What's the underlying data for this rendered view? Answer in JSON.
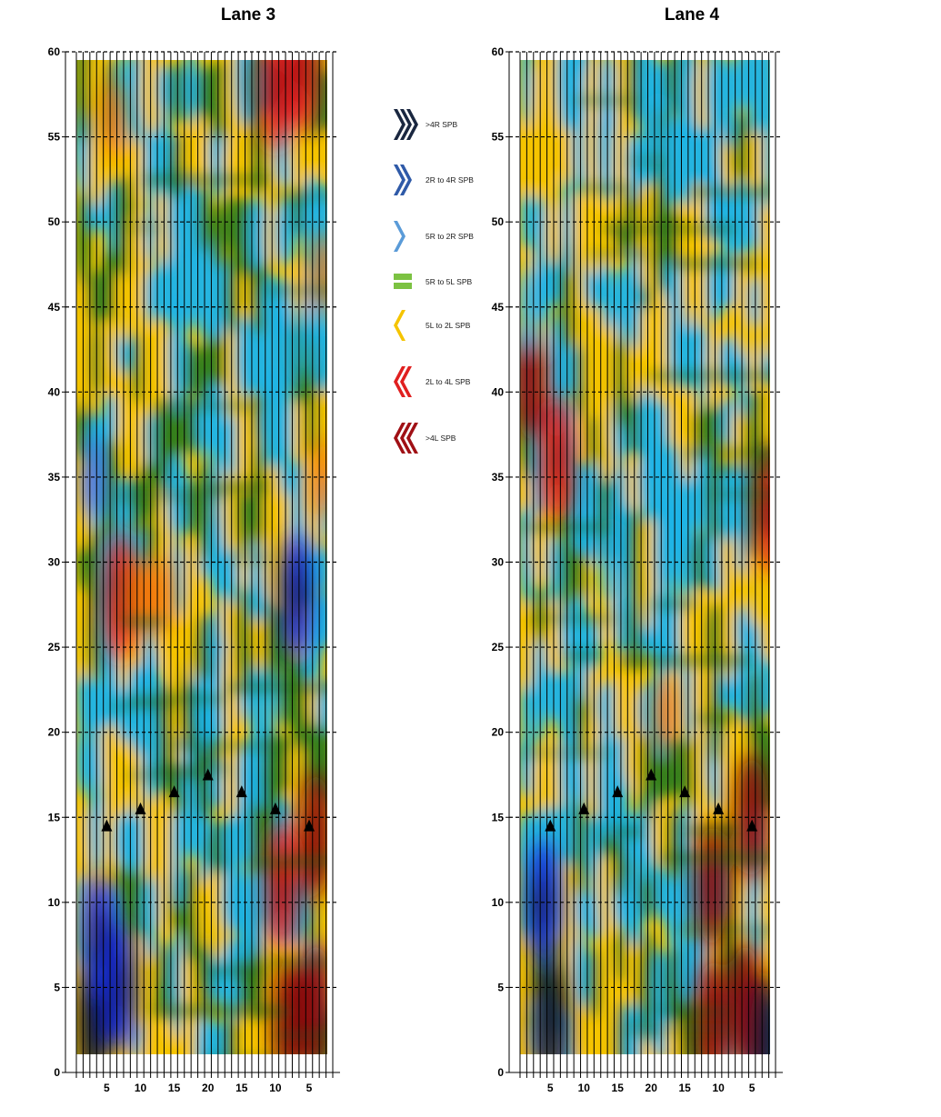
{
  "colors": {
    ">4R SPB": "#1a2740",
    "2R to 4R SPB": "#2f5aa8",
    "5R to 2R SPB": "#5a9bd8",
    "5R to 5L SPB": "#7cc242",
    "5L to 2L SPB": "#f5c400",
    "2L to 4L SPB": "#e02020",
    ">4L SPB": "#a01015"
  },
  "chart_data": [
    {
      "type": "heatmap",
      "title": "Lane 3",
      "ylim": [
        0,
        60
      ],
      "yticks": [
        0,
        5,
        10,
        15,
        20,
        25,
        30,
        35,
        40,
        45,
        50,
        55,
        60
      ],
      "xtick_labels": [
        "5",
        "10",
        "15",
        "20",
        "15",
        "10",
        "5"
      ],
      "grid": true,
      "markers": [
        {
          "col": 5,
          "y": 14.5
        },
        {
          "col": 10,
          "y": 15.5
        },
        {
          "col": 15,
          "y": 16.5
        },
        {
          "col": 20,
          "y": 17.5
        },
        {
          "col": 25,
          "y": 16.5
        },
        {
          "col": 30,
          "y": 15.5
        },
        {
          "col": 35,
          "y": 14.5
        }
      ],
      "hotspots": [
        {
          "col": 2,
          "y": 3,
          "level": -4
        },
        {
          "col": 3,
          "y": 8,
          "level": -3
        },
        {
          "col": 6,
          "y": 5,
          "level": -3
        },
        {
          "col": 2,
          "y": 35,
          "level": -2
        },
        {
          "col": 32,
          "y": 28,
          "level": -3
        },
        {
          "col": 33,
          "y": 43,
          "level": -1
        },
        {
          "col": 6,
          "y": 28,
          "level": 3
        },
        {
          "col": 9,
          "y": 28,
          "level": 2
        },
        {
          "col": 12,
          "y": 28,
          "level": 2
        },
        {
          "col": 30,
          "y": 11,
          "level": 3
        },
        {
          "col": 35,
          "y": 14,
          "level": 4
        },
        {
          "col": 35,
          "y": 4,
          "level": 4
        },
        {
          "col": 31,
          "y": 3,
          "level": 4
        },
        {
          "col": 36,
          "y": 35,
          "level": 2
        },
        {
          "col": 5,
          "y": 56,
          "level": 2
        },
        {
          "col": 29,
          "y": 58,
          "level": 3
        },
        {
          "col": 33,
          "y": 59,
          "level": 3
        },
        {
          "col": 36,
          "y": 47,
          "level": 2
        }
      ]
    },
    {
      "type": "heatmap",
      "title": "Lane 4",
      "ylim": [
        0,
        60
      ],
      "yticks": [
        0,
        5,
        10,
        15,
        20,
        25,
        30,
        35,
        40,
        45,
        50,
        55,
        60
      ],
      "xtick_labels": [
        "5",
        "10",
        "15",
        "20",
        "15",
        "10",
        "5"
      ],
      "grid": true,
      "markers": [
        {
          "col": 5,
          "y": 14.5
        },
        {
          "col": 10,
          "y": 15.5
        },
        {
          "col": 15,
          "y": 16.5
        },
        {
          "col": 20,
          "y": 17.5
        },
        {
          "col": 25,
          "y": 16.5
        },
        {
          "col": 30,
          "y": 15.5
        },
        {
          "col": 35,
          "y": 14.5
        }
      ],
      "hotspots": [
        {
          "col": 1,
          "y": 41,
          "level": 4
        },
        {
          "col": 5,
          "y": 36,
          "level": 3
        },
        {
          "col": 4,
          "y": 3,
          "level": -4
        },
        {
          "col": 3,
          "y": 10,
          "level": -3
        },
        {
          "col": 1,
          "y": 45,
          "level": -1
        },
        {
          "col": 28,
          "y": 11,
          "level": 4
        },
        {
          "col": 34,
          "y": 15,
          "level": 4
        },
        {
          "col": 33,
          "y": 4,
          "level": 4
        },
        {
          "col": 28,
          "y": 3,
          "level": 4
        },
        {
          "col": 37,
          "y": 33,
          "level": 3
        },
        {
          "col": 21,
          "y": 21,
          "level": 2
        },
        {
          "col": 36,
          "y": 2,
          "level": -4
        },
        {
          "col": 20,
          "y": 55,
          "level": -1
        },
        {
          "col": 13,
          "y": 30,
          "level": -1
        }
      ]
    }
  ],
  "legend": [
    {
      "label": ">4R SPB",
      "icon": "chevron-right-triple-icon",
      "color": "#1a2740"
    },
    {
      "label": "2R to 4R SPB",
      "icon": "chevron-right-double-icon",
      "color": "#2f5aa8"
    },
    {
      "label": "5R to 2R SPB",
      "icon": "chevron-right-single-icon",
      "color": "#5a9bd8"
    },
    {
      "label": "5R to 5L SPB",
      "icon": "equals-icon",
      "color": "#7cc242"
    },
    {
      "label": "5L to 2L SPB",
      "icon": "chevron-left-single-icon",
      "color": "#f5c400"
    },
    {
      "label": "2L to 4L SPB",
      "icon": "chevron-left-double-icon",
      "color": "#e02020"
    },
    {
      "label": ">4L SPB",
      "icon": "chevron-left-triple-icon",
      "color": "#a01015"
    }
  ]
}
